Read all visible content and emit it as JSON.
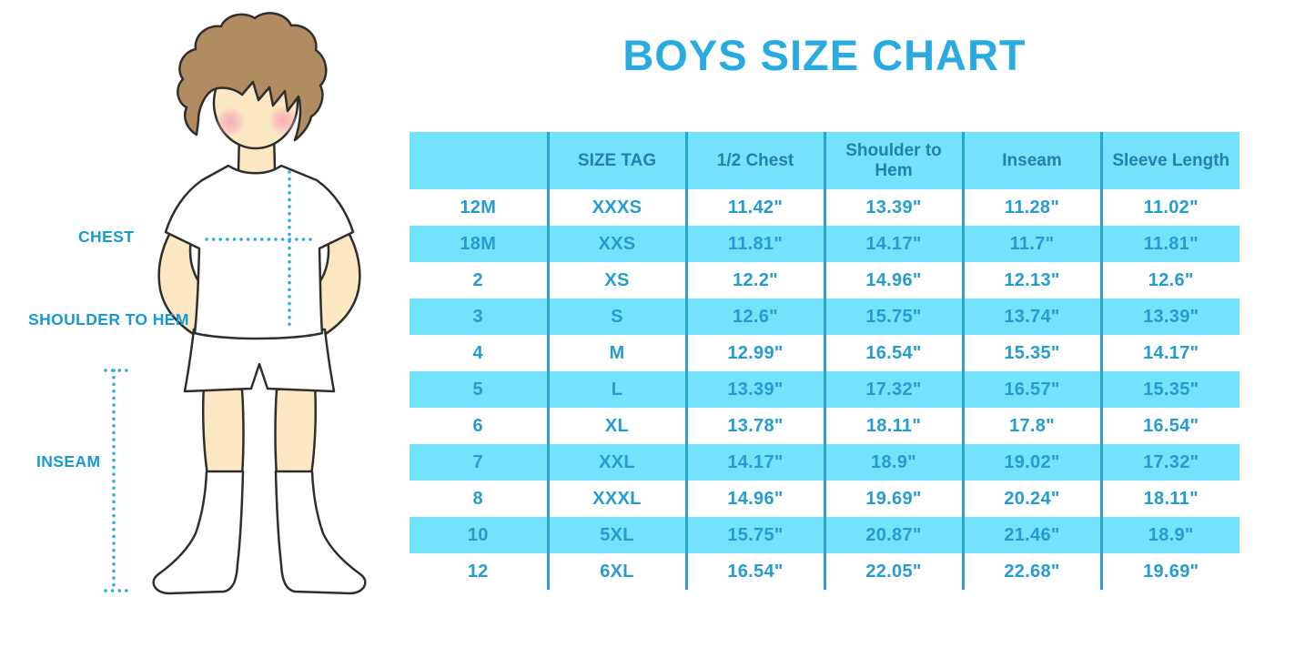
{
  "title": "BOYS SIZE CHART",
  "figure": {
    "labels": {
      "chest": "CHEST",
      "shoulder_to_hem": "SHOULDER TO HEM",
      "inseam": "INSEAM"
    }
  },
  "colors": {
    "title": "#29abe2",
    "stripe": "#73e2fb",
    "divider": "#2ba3d2",
    "header_text": "#2381ab",
    "cell_text": "#259cd1",
    "label_text": "#1799d6",
    "dotted_line": "#29abe2",
    "skin": "#fbe7c2",
    "hair": "#b28c61",
    "blush": "#f5a8b8",
    "outline": "#2e2e2e"
  },
  "chart_data": {
    "type": "table",
    "title": "BOYS SIZE CHART",
    "columns": [
      "",
      "SIZE TAG",
      "1/2 Chest",
      "Shoulder to Hem",
      "Inseam",
      "Sleeve Length"
    ],
    "rows": [
      [
        "12M",
        "XXXS",
        "11.42\"",
        "13.39\"",
        "11.28\"",
        "11.02\""
      ],
      [
        "18M",
        "XXS",
        "11.81\"",
        "14.17\"",
        "11.7\"",
        "11.81\""
      ],
      [
        "2",
        "XS",
        "12.2\"",
        "14.96\"",
        "12.13\"",
        "12.6\""
      ],
      [
        "3",
        "S",
        "12.6\"",
        "15.75\"",
        "13.74\"",
        "13.39\""
      ],
      [
        "4",
        "M",
        "12.99\"",
        "16.54\"",
        "15.35\"",
        "14.17\""
      ],
      [
        "5",
        "L",
        "13.39\"",
        "17.32\"",
        "16.57\"",
        "15.35\""
      ],
      [
        "6",
        "XL",
        "13.78\"",
        "18.11\"",
        "17.8\"",
        "16.54\""
      ],
      [
        "7",
        "XXL",
        "14.17\"",
        "18.9\"",
        "19.02\"",
        "17.32\""
      ],
      [
        "8",
        "XXXL",
        "14.96\"",
        "19.69\"",
        "20.24\"",
        "18.11\""
      ],
      [
        "10",
        "5XL",
        "15.75\"",
        "20.87\"",
        "21.46\"",
        "18.9\""
      ],
      [
        "12",
        "6XL",
        "16.54\"",
        "22.05\"",
        "22.68\"",
        "19.69\""
      ]
    ],
    "striped_row_indices": [
      1,
      3,
      5,
      7,
      9
    ],
    "header_background": "#73e2fb",
    "grid": "vertical-dividers-only",
    "legend_position": "none"
  }
}
